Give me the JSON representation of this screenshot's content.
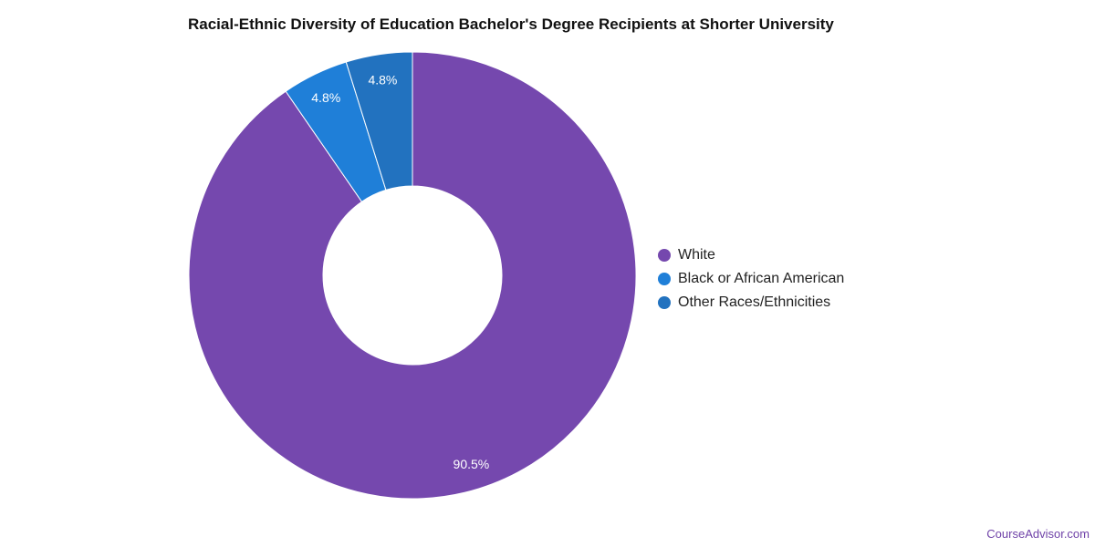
{
  "chart_data": {
    "type": "pie",
    "donut": true,
    "title": "Racial-Ethnic Diversity of Education Bachelor's Degree Recipients at Shorter University",
    "categories": [
      "White",
      "Black or African American",
      "Other Races/Ethnicities"
    ],
    "values": [
      90.5,
      4.8,
      4.8
    ],
    "value_labels": [
      "90.5%",
      "4.8%",
      "4.8%"
    ],
    "colors": [
      "#7548ae",
      "#1f7fd8",
      "#2272bf"
    ],
    "legend_placement": "right"
  },
  "source": "CourseAdvisor.com"
}
